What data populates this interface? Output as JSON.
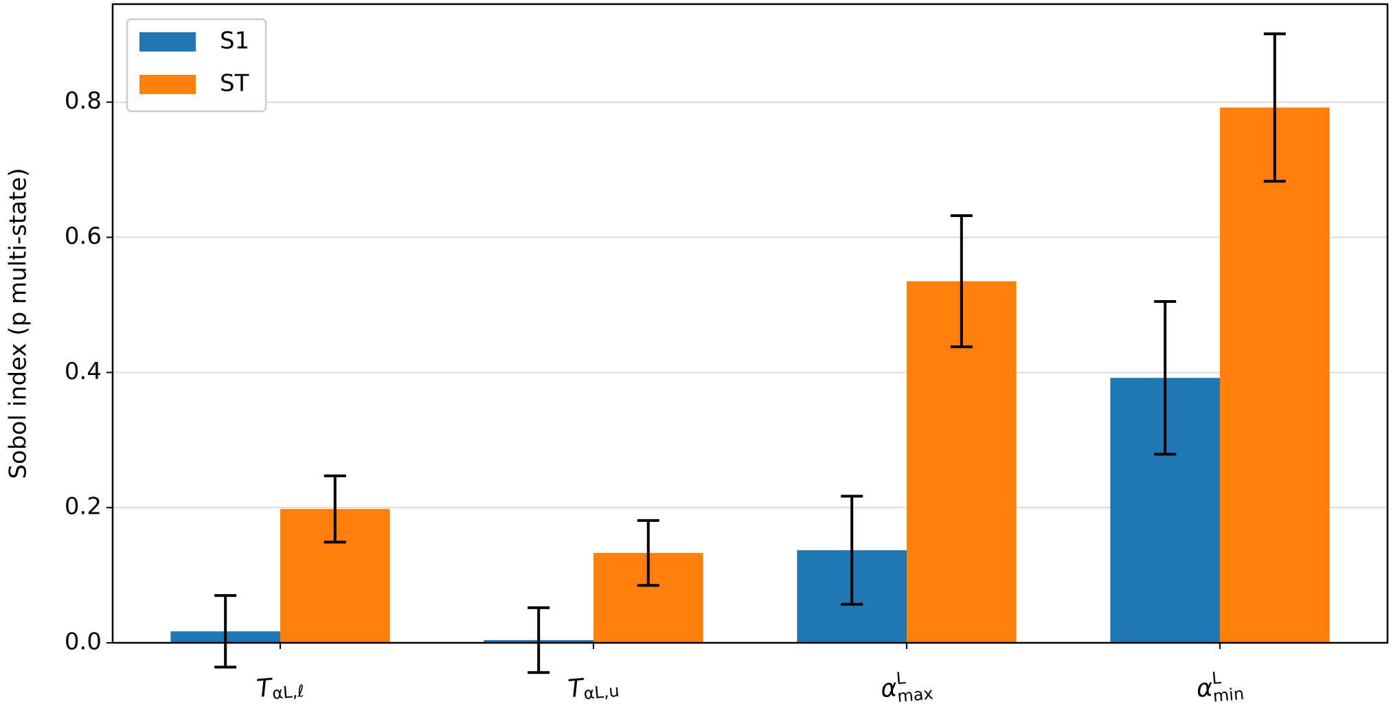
{
  "chart_data": {
    "type": "bar",
    "y_label": "Sobol index (p multi-state)",
    "categories": [
      {
        "base": "T",
        "sub": "αL,ℓ"
      },
      {
        "base": "T",
        "sub": "αL,u"
      },
      {
        "base": "α",
        "sup": "L",
        "sub": "max"
      },
      {
        "base": "α",
        "sup": "L",
        "sub": "min"
      }
    ],
    "series": [
      {
        "name": "S1",
        "color": "#1f77b4",
        "values": [
          0.017,
          0.004,
          0.137,
          0.392
        ],
        "errors": [
          0.053,
          0.048,
          0.08,
          0.113
        ]
      },
      {
        "name": "ST",
        "color": "#ff7f0e",
        "values": [
          0.198,
          0.133,
          0.535,
          0.792
        ],
        "errors": [
          0.049,
          0.048,
          0.097,
          0.109
        ]
      }
    ],
    "ylim": [
      0,
      0.945
    ],
    "yticks": [
      {
        "value": 0,
        "label": "0.0"
      },
      0.2,
      0.4,
      0.6,
      0.8
    ],
    "grid": true,
    "legend": "upper left"
  }
}
